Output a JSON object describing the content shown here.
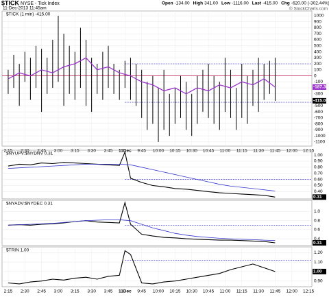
{
  "header": {
    "symbol": "$TICK",
    "name": "NYSE - Tick Index",
    "date": "11-Dec-2013 11:45am",
    "stats": [
      {
        "label": "Open",
        "value": "-134.00"
      },
      {
        "label": "High",
        "value": "341.00"
      },
      {
        "label": "Low",
        "value": "-1116.00"
      },
      {
        "label": "Last",
        "value": "-415.00"
      },
      {
        "label": "Chg",
        "value": "-620.00 (-302.44%)"
      }
    ],
    "credit": "© StockCharts.com"
  },
  "chart_data": [
    {
      "type": "hilo",
      "title": "$TICK (1 min) -415.00",
      "color": "#000000",
      "x": [
        0,
        5,
        10,
        15,
        20,
        25,
        30,
        35,
        40,
        45,
        50,
        55,
        60,
        65,
        70,
        75,
        80,
        85,
        90,
        95,
        100,
        105,
        110,
        115,
        120,
        125,
        130,
        135,
        140,
        145,
        150,
        155,
        160,
        165,
        170,
        175,
        180,
        185,
        190,
        195,
        200,
        205,
        210,
        215,
        220,
        225,
        230,
        235,
        240
      ],
      "highs": [
        100,
        350,
        200,
        400,
        300,
        500,
        450,
        300,
        600,
        1000,
        700,
        500,
        400,
        800,
        600,
        300,
        200,
        400,
        500,
        200,
        100,
        250,
        300,
        200,
        100,
        -100,
        0,
        -200,
        100,
        -300,
        -200,
        0,
        -100,
        -300,
        0,
        100,
        200,
        0,
        -100,
        300,
        100,
        -200,
        200,
        0,
        100,
        300,
        200,
        250,
        300
      ],
      "lows": [
        -300,
        -200,
        -500,
        -100,
        -400,
        -200,
        -600,
        -300,
        -200,
        -100,
        -500,
        -300,
        -400,
        -200,
        -500,
        -600,
        -300,
        -400,
        -200,
        -300,
        -400,
        -200,
        -400,
        -500,
        -700,
        -900,
        -800,
        -1100,
        -900,
        -1000,
        -800,
        -700,
        -900,
        -1000,
        -800,
        -600,
        -700,
        -800,
        -900,
        -600,
        -700,
        -900,
        -700,
        -800,
        -500,
        -600,
        -400,
        -300,
        -415
      ],
      "ma": {
        "color": "#9933cc",
        "x": [
          0,
          10,
          20,
          30,
          40,
          50,
          60,
          70,
          80,
          90,
          100,
          110,
          120,
          130,
          140,
          150,
          160,
          170,
          180,
          190,
          200,
          210,
          220,
          230,
          240
        ],
        "values": [
          -50,
          50,
          0,
          100,
          50,
          150,
          200,
          300,
          100,
          150,
          50,
          0,
          -100,
          -150,
          -250,
          -200,
          -300,
          -200,
          -250,
          -150,
          -200,
          -100,
          -150,
          -50,
          -187.3
        ]
      },
      "zero_line": {
        "value": 0,
        "color": "#cc3366"
      },
      "dashed_lines": [
        {
          "value": 200,
          "from": 105
        },
        {
          "value": -440,
          "from": 105
        }
      ],
      "last_markers": [
        {
          "value": -187.3,
          "label": "-187.30",
          "color": "#9933cc"
        },
        {
          "value": -415,
          "label": "-415.00",
          "color": "#000000"
        }
      ],
      "xlim": [
        -5.5,
        273
      ],
      "ylim": [
        -1170,
        1080
      ],
      "yticks": [
        1000,
        900,
        800,
        700,
        600,
        500,
        400,
        300,
        200,
        100,
        0,
        -100,
        -200,
        -300,
        -400,
        -500,
        -600,
        -700,
        -800,
        -900,
        -1000,
        -1100
      ],
      "xticks": [
        {
          "value": 0,
          "label": "2:15"
        },
        {
          "value": 15,
          "label": "2:30"
        },
        {
          "value": 30,
          "label": "2:45"
        },
        {
          "value": 45,
          "label": "3:00"
        },
        {
          "value": 60,
          "label": "3:15"
        },
        {
          "value": 75,
          "label": "3:30"
        },
        {
          "value": 90,
          "label": "3:45"
        },
        {
          "value": 105,
          "label": "11Dec"
        },
        {
          "value": 120,
          "label": "9:45"
        },
        {
          "value": 135,
          "label": "10:00"
        },
        {
          "value": 150,
          "label": "10:15"
        },
        {
          "value": 165,
          "label": "10:30"
        },
        {
          "value": 180,
          "label": "10:45"
        },
        {
          "value": 195,
          "label": "11:00"
        },
        {
          "value": 210,
          "label": "11:15"
        },
        {
          "value": 225,
          "label": "11:30"
        },
        {
          "value": 240,
          "label": "11:45"
        },
        {
          "value": 255,
          "label": "12:00"
        },
        {
          "value": 270,
          "label": "12:15"
        }
      ]
    },
    {
      "type": "line",
      "title": "$NYUPV:$NYDNV 0.31",
      "xlim": [
        -5.5,
        273
      ],
      "ylim": [
        0.28,
        1.08
      ],
      "yticks": [
        {
          "value": 1,
          "label": "1.00"
        },
        {
          "value": 0.9,
          "label": "0.90"
        },
        {
          "value": 0.8,
          "label": "0.80"
        },
        {
          "value": 0.7,
          "label": "0.70"
        },
        {
          "value": 0.6,
          "label": "0.60"
        },
        {
          "value": 0.5,
          "label": "0.50"
        },
        {
          "value": 0.4,
          "label": "0.40"
        }
      ],
      "series": [
        {
          "color": "#000000",
          "x": [
            0,
            10,
            20,
            30,
            40,
            50,
            60,
            70,
            80,
            90,
            100,
            105,
            110,
            120,
            130,
            140,
            150,
            160,
            170,
            180,
            190,
            200,
            210,
            220,
            230,
            240
          ],
          "values": [
            0.82,
            0.85,
            0.84,
            0.87,
            0.86,
            0.88,
            0.87,
            0.86,
            0.85,
            0.84,
            0.83,
            1.05,
            0.62,
            0.55,
            0.5,
            0.48,
            0.45,
            0.44,
            0.42,
            0.4,
            0.38,
            0.37,
            0.36,
            0.35,
            0.34,
            0.31
          ]
        },
        {
          "color": "#3333cc",
          "x": [
            0,
            10,
            20,
            30,
            40,
            50,
            60,
            70,
            80,
            90,
            100,
            110,
            120,
            130,
            140,
            150,
            160,
            170,
            180,
            190,
            200,
            210,
            220,
            230,
            240
          ],
          "values": [
            0.78,
            0.79,
            0.8,
            0.81,
            0.82,
            0.83,
            0.84,
            0.85,
            0.85,
            0.85,
            0.85,
            0.84,
            0.8,
            0.76,
            0.72,
            0.68,
            0.64,
            0.6,
            0.56,
            0.52,
            0.49,
            0.47,
            0.45,
            0.43,
            0.41
          ]
        }
      ],
      "dashed_lines": [
        {
          "value": 0.6,
          "from": 105
        }
      ],
      "last_markers": [
        {
          "value": 0.31,
          "label": "0.31",
          "color": "#000000"
        }
      ]
    },
    {
      "type": "line",
      "title": "$NYADV:$NYDEC 0.31",
      "xlim": [
        -5.5,
        273
      ],
      "ylim": [
        0.25,
        1.25
      ],
      "yticks": [
        {
          "value": 1,
          "label": "1.0"
        },
        {
          "value": 0.8,
          "label": "0.8"
        },
        {
          "value": 0.6,
          "label": "0.6"
        },
        {
          "value": 0.4,
          "label": "0.4"
        }
      ],
      "series": [
        {
          "color": "#000000",
          "x": [
            0,
            10,
            20,
            30,
            40,
            50,
            60,
            70,
            80,
            90,
            100,
            105,
            110,
            120,
            130,
            140,
            150,
            160,
            170,
            180,
            190,
            200,
            210,
            220,
            230,
            240
          ],
          "values": [
            0.7,
            0.71,
            0.7,
            0.72,
            0.73,
            0.75,
            0.78,
            0.8,
            0.77,
            0.76,
            0.75,
            1.2,
            0.72,
            0.5,
            0.46,
            0.43,
            0.42,
            0.4,
            0.39,
            0.38,
            0.37,
            0.37,
            0.36,
            0.35,
            0.34,
            0.31
          ]
        },
        {
          "color": "#3333cc",
          "x": [
            0,
            10,
            20,
            30,
            40,
            50,
            60,
            70,
            80,
            90,
            100,
            110,
            120,
            130,
            140,
            150,
            160,
            170,
            180,
            190,
            200,
            210,
            220,
            230,
            240
          ],
          "values": [
            0.7,
            0.71,
            0.72,
            0.73,
            0.74,
            0.76,
            0.78,
            0.8,
            0.81,
            0.82,
            0.82,
            0.8,
            0.72,
            0.64,
            0.58,
            0.52,
            0.48,
            0.45,
            0.43,
            0.41,
            0.4,
            0.39,
            0.38,
            0.37,
            0.36
          ]
        }
      ],
      "dashed_lines": [
        {
          "value": 0.7,
          "from": 105
        }
      ],
      "last_markers": [
        {
          "value": 0.31,
          "label": "0.31",
          "color": "#000000"
        }
      ]
    },
    {
      "type": "line",
      "title": "$TRIN 1.00",
      "xlim": [
        -5.5,
        273
      ],
      "ylim": [
        0.84,
        1.26
      ],
      "yticks": [
        {
          "value": 1.2,
          "label": "1.20"
        },
        {
          "value": 1.1,
          "label": "1.10"
        },
        {
          "value": 1,
          "label": "1.00"
        },
        {
          "value": 0.9,
          "label": "0.90"
        }
      ],
      "series": [
        {
          "color": "#000000",
          "x": [
            0,
            10,
            20,
            30,
            40,
            50,
            60,
            70,
            80,
            90,
            100,
            105,
            110,
            120,
            130,
            140,
            150,
            160,
            170,
            180,
            190,
            200,
            210,
            220,
            230,
            240
          ],
          "values": [
            0.88,
            0.87,
            0.89,
            0.9,
            0.92,
            0.91,
            0.93,
            0.94,
            0.92,
            0.95,
            0.96,
            1.22,
            1.18,
            0.88,
            0.87,
            0.89,
            0.9,
            0.92,
            0.94,
            0.96,
            0.98,
            1.02,
            1.05,
            1.08,
            1.04,
            1
          ]
        }
      ],
      "dashed_lines": [
        {
          "value": 1.12,
          "from": 105
        }
      ],
      "last_markers": [
        {
          "value": 1,
          "label": "1.00",
          "color": "#000000"
        }
      ],
      "xticks": [
        {
          "value": 0,
          "label": "2:15"
        },
        {
          "value": 15,
          "label": "2:30"
        },
        {
          "value": 30,
          "label": "2:45"
        },
        {
          "value": 45,
          "label": "3:00"
        },
        {
          "value": 60,
          "label": "3:15"
        },
        {
          "value": 75,
          "label": "3:30"
        },
        {
          "value": 90,
          "label": "3:45"
        },
        {
          "value": 105,
          "label": "11Dec"
        },
        {
          "value": 120,
          "label": "9:45"
        },
        {
          "value": 135,
          "label": "10:00"
        },
        {
          "value": 150,
          "label": "10:15"
        },
        {
          "value": 165,
          "label": "10:30"
        },
        {
          "value": 180,
          "label": "10:45"
        },
        {
          "value": 195,
          "label": "11:00"
        },
        {
          "value": 210,
          "label": "11:15"
        },
        {
          "value": 225,
          "label": "11:30"
        },
        {
          "value": 240,
          "label": "11:45"
        },
        {
          "value": 255,
          "label": "12:00"
        },
        {
          "value": 270,
          "label": "12:15"
        }
      ]
    }
  ]
}
